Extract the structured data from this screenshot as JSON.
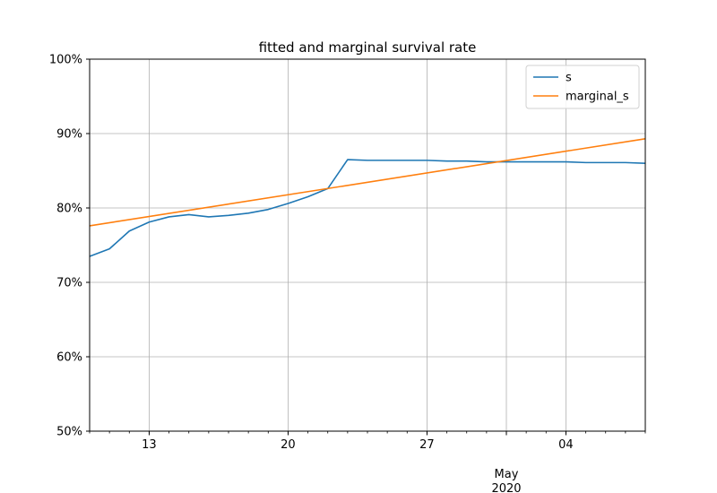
{
  "chart_data": {
    "type": "line",
    "title": "fitted and marginal survival rate",
    "xlabel": "",
    "ylabel": "",
    "x_range": [
      "2020-04-10",
      "2020-05-08"
    ],
    "ylim": [
      0.5,
      1.0
    ],
    "y_format": "percent",
    "y_ticks": [
      0.5,
      0.6,
      0.7,
      0.8,
      0.9,
      1.0
    ],
    "y_tick_labels": [
      "50%",
      "60%",
      "70%",
      "80%",
      "90%",
      "100%"
    ],
    "x_ticks": [
      {
        "date": "2020-04-13",
        "label": "13"
      },
      {
        "date": "2020-04-20",
        "label": "20"
      },
      {
        "date": "2020-04-27",
        "label": "27"
      },
      {
        "date": "2020-05-01",
        "label": "May\n2020"
      },
      {
        "date": "2020-05-04",
        "label": "04"
      }
    ],
    "grid": true,
    "legend_position": "upper-right",
    "series": [
      {
        "name": "s",
        "color": "#1f77b4",
        "points": [
          [
            "2020-04-10",
            0.735
          ],
          [
            "2020-04-11",
            0.745
          ],
          [
            "2020-04-12",
            0.769
          ],
          [
            "2020-04-13",
            0.781
          ],
          [
            "2020-04-14",
            0.788
          ],
          [
            "2020-04-15",
            0.791
          ],
          [
            "2020-04-16",
            0.788
          ],
          [
            "2020-04-17",
            0.79
          ],
          [
            "2020-04-18",
            0.793
          ],
          [
            "2020-04-19",
            0.798
          ],
          [
            "2020-04-20",
            0.806
          ],
          [
            "2020-04-21",
            0.815
          ],
          [
            "2020-04-22",
            0.826
          ],
          [
            "2020-04-23",
            0.865
          ],
          [
            "2020-04-24",
            0.864
          ],
          [
            "2020-04-25",
            0.864
          ],
          [
            "2020-04-26",
            0.864
          ],
          [
            "2020-04-27",
            0.864
          ],
          [
            "2020-04-28",
            0.863
          ],
          [
            "2020-04-29",
            0.863
          ],
          [
            "2020-04-30",
            0.862
          ],
          [
            "2020-05-01",
            0.862
          ],
          [
            "2020-05-02",
            0.862
          ],
          [
            "2020-05-03",
            0.862
          ],
          [
            "2020-05-04",
            0.862
          ],
          [
            "2020-05-05",
            0.861
          ],
          [
            "2020-05-06",
            0.861
          ],
          [
            "2020-05-07",
            0.861
          ],
          [
            "2020-05-08",
            0.86
          ]
        ]
      },
      {
        "name": "marginal_s",
        "color": "#ff7f0e",
        "points": [
          [
            "2020-04-10",
            0.776
          ],
          [
            "2020-05-08",
            0.893
          ]
        ]
      }
    ]
  }
}
